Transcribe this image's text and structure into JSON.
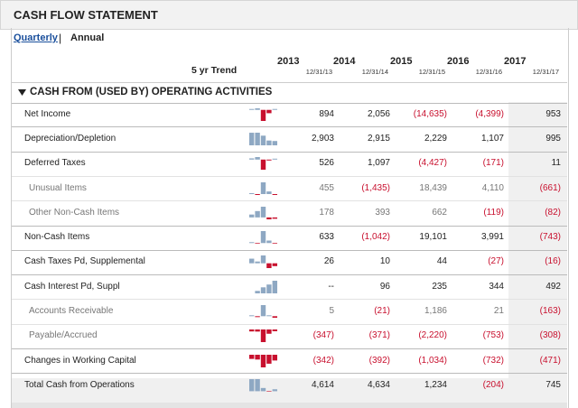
{
  "header": {
    "title": "CASH FLOW STATEMENT"
  },
  "tabs": [
    "Quarterly",
    "Annual"
  ],
  "columns": {
    "trend_label": "5 yr Trend",
    "years": [
      {
        "year": "2013",
        "date": "12/31/13"
      },
      {
        "year": "2014",
        "date": "12/31/14"
      },
      {
        "year": "2015",
        "date": "12/31/15"
      },
      {
        "year": "2016",
        "date": "12/31/16"
      },
      {
        "year": "2017",
        "date": "12/31/17"
      }
    ]
  },
  "section": {
    "title": "CASH FROM (USED BY) OPERATING ACTIVITIES",
    "rows": [
      {
        "label": "Net Income",
        "sub": false,
        "values": [
          "894",
          "2,056",
          "(14,635)",
          "(4,399)",
          "953"
        ]
      },
      {
        "label": "Depreciation/Depletion",
        "sub": false,
        "values": [
          "2,903",
          "2,915",
          "2,229",
          "1,107",
          "995"
        ]
      },
      {
        "label": "Deferred Taxes",
        "sub": false,
        "values": [
          "526",
          "1,097",
          "(4,427)",
          "(171)",
          "11"
        ]
      },
      {
        "label": "Unusual Items",
        "sub": true,
        "values": [
          "455",
          "(1,435)",
          "18,439",
          "4,110",
          "(661)"
        ]
      },
      {
        "label": "Other Non-Cash Items",
        "sub": true,
        "values": [
          "178",
          "393",
          "662",
          "(119)",
          "(82)"
        ]
      },
      {
        "label": "Non-Cash Items",
        "sub": false,
        "values": [
          "633",
          "(1,042)",
          "19,101",
          "3,991",
          "(743)"
        ]
      },
      {
        "label": "Cash Taxes Pd, Supplemental",
        "sub": false,
        "values": [
          "26",
          "10",
          "44",
          "(27)",
          "(16)"
        ]
      },
      {
        "label": "Cash Interest Pd, Suppl",
        "sub": false,
        "values": [
          "--",
          "96",
          "235",
          "344",
          "492"
        ]
      },
      {
        "label": "Accounts Receivable",
        "sub": true,
        "values": [
          "5",
          "(21)",
          "1,186",
          "21",
          "(163)"
        ]
      },
      {
        "label": "Payable/Accrued",
        "sub": true,
        "values": [
          "(347)",
          "(371)",
          "(2,220)",
          "(753)",
          "(308)"
        ]
      },
      {
        "label": "Changes in Working Capital",
        "sub": false,
        "values": [
          "(342)",
          "(392)",
          "(1,034)",
          "(732)",
          "(471)"
        ]
      },
      {
        "label": "Total Cash from Operations",
        "sub": false,
        "values": [
          "4,614",
          "4,634",
          "1,234",
          "(204)",
          "745"
        ]
      }
    ]
  }
}
